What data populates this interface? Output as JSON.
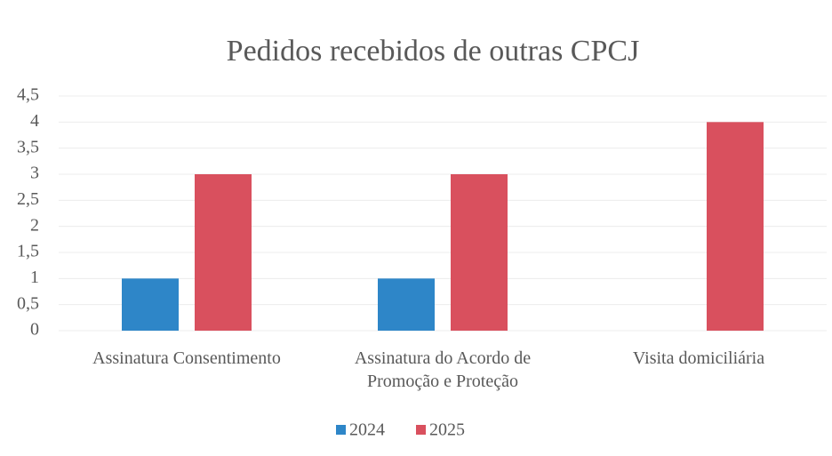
{
  "chart_data": {
    "type": "bar",
    "title": "Pedidos recebidos de outras CPCJ",
    "categories": [
      "Assinatura Consentimento",
      "Assinatura do Acordo de Promoção e Proteção",
      "Visita domiciliária"
    ],
    "series": [
      {
        "name": "2024",
        "color": "#2e86c8",
        "values": [
          1,
          1,
          0
        ]
      },
      {
        "name": "2025",
        "color": "#d9505e",
        "values": [
          3,
          3,
          4
        ]
      }
    ],
    "ylim": [
      0,
      4.5
    ],
    "yticks": [
      0,
      {
        "value": 0.5,
        "label": "0,5"
      },
      1,
      {
        "value": 1.5,
        "label": "1,5"
      },
      2,
      {
        "value": 2.5,
        "label": "2,5"
      },
      3,
      {
        "value": 3.5,
        "label": "3,5"
      },
      4,
      {
        "value": 4.5,
        "label": "4,5"
      }
    ],
    "grid": true,
    "legend": "bottom"
  }
}
